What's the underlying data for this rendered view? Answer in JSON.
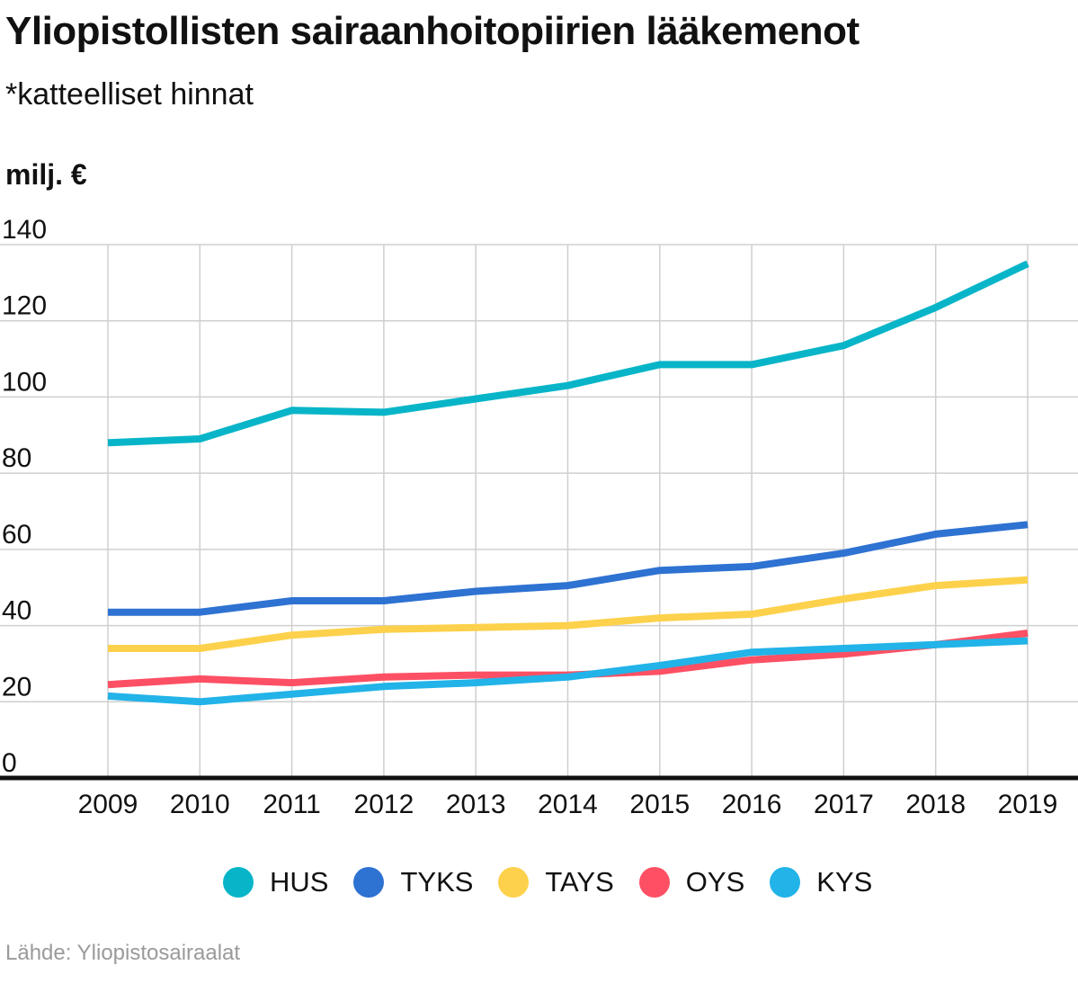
{
  "chart_data": {
    "type": "line",
    "title": "Yliopistollisten sairaanhoitopiirien lääkemenot",
    "subtitle": "*katteelliset hinnat",
    "ylabel": "milj. €",
    "xlabel": "",
    "ylim": [
      0,
      140
    ],
    "yticks": [
      0,
      20,
      40,
      60,
      80,
      100,
      120,
      140
    ],
    "grid": true,
    "legend_position": "bottom",
    "categories": [
      "2009",
      "2010",
      "2011",
      "2012",
      "2013",
      "2014",
      "2015",
      "2016",
      "2017",
      "2018",
      "2019"
    ],
    "series": [
      {
        "name": "HUS",
        "color": "#08b5c8",
        "values": [
          88,
          89,
          96.5,
          96,
          99.5,
          103,
          108.5,
          108.5,
          113.5,
          123.5,
          135
        ]
      },
      {
        "name": "TYKS",
        "color": "#2e72d2",
        "values": [
          43.5,
          43.5,
          46.5,
          46.5,
          49,
          50.5,
          54.5,
          55.5,
          59,
          64,
          66.5
        ]
      },
      {
        "name": "TAYS",
        "color": "#fdd14b",
        "values": [
          34,
          34,
          37.5,
          39,
          39.5,
          40,
          42,
          43,
          47,
          50.5,
          52
        ]
      },
      {
        "name": "OYS",
        "color": "#fd5064",
        "values": [
          24.5,
          26,
          25,
          26.5,
          27,
          27,
          28,
          31,
          32.5,
          35,
          38
        ]
      },
      {
        "name": "KYS",
        "color": "#22b3e8",
        "values": [
          21.5,
          20,
          22,
          24,
          25,
          26.5,
          29.5,
          33,
          34,
          35,
          36
        ]
      }
    ]
  },
  "source": "Lähde: Yliopistosairaalat"
}
